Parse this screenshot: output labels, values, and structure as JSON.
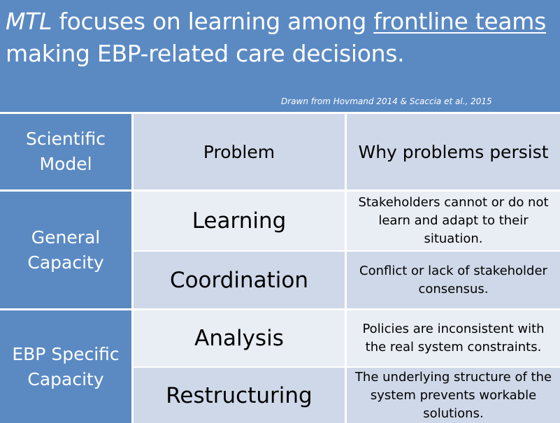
{
  "title": {
    "part1_italic": "MTL",
    "part2": " focuses on learning among ",
    "part3_underlined": "frontline teams",
    "part4": " making EBP-related care decisions."
  },
  "source": "Drawn from Hovmand 2014  & Scaccia et al., 2015",
  "table": {
    "header": {
      "col1": "Scientific Model",
      "col2": "Problem",
      "col3": "Why problems persist"
    },
    "groups": [
      {
        "label": "General Capacity",
        "rows": [
          {
            "problem": "Learning",
            "why": "Stakeholders cannot or do not learn and adapt to their situation."
          },
          {
            "problem": "Coordination",
            "why": "Conflict or lack of stakeholder consensus."
          }
        ]
      },
      {
        "label": "EBP Specific Capacity",
        "rows": [
          {
            "problem": "Analysis",
            "why": "Policies are inconsistent with the real system constraints."
          },
          {
            "problem": "Restructuring",
            "why": "The underlying structure of the system prevents workable solutions."
          }
        ]
      }
    ]
  },
  "colors": {
    "header_blue": "#5b8ac3",
    "row_light": "#e9edf4",
    "row_dark": "#cfd8e8"
  }
}
